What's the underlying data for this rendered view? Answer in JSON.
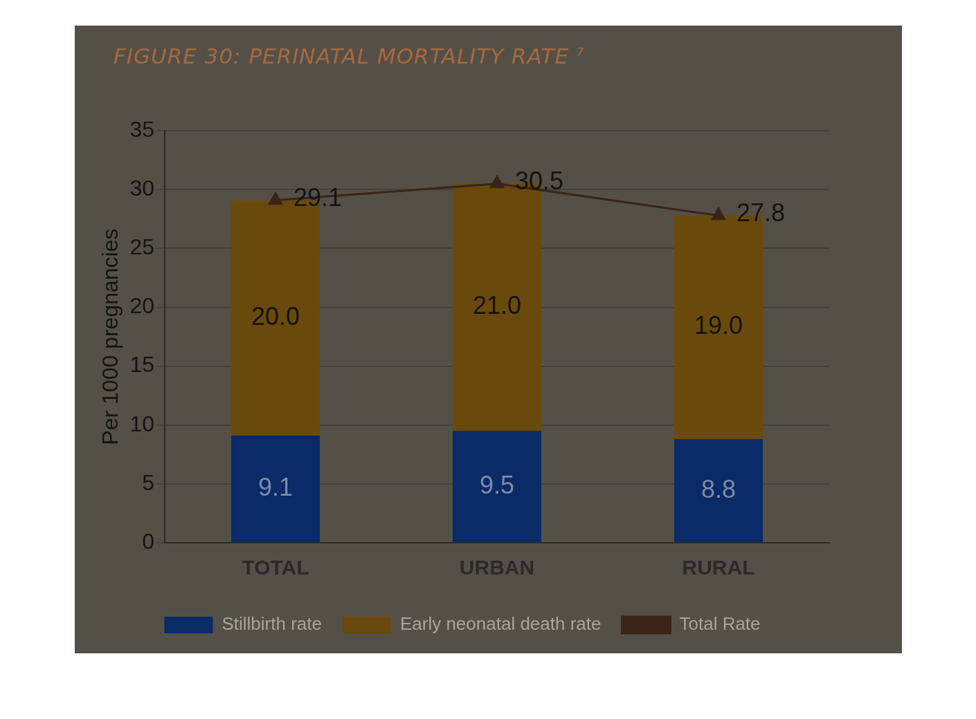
{
  "chart_data": {
    "type": "bar",
    "title": "FIGURE 30: PERINATAL MORTALITY RATE $^{7}$",
    "ylabel": "Per 1000 pregnancies",
    "categories": [
      "TOTAL",
      "URBAN",
      "RURAL"
    ],
    "stacked": true,
    "series": [
      {
        "name": "Stillbirth rate",
        "color": "#0a2a68",
        "values": [
          9.1,
          9.5,
          8.8
        ],
        "value_labels": [
          "9.1",
          "9.5",
          "8.8"
        ]
      },
      {
        "name": "Early neonatal death rate",
        "color": "#6a4a0c",
        "values": [
          20.0,
          21.0,
          19.0
        ],
        "value_labels": [
          "20.0",
          "21.0",
          "19.0"
        ]
      },
      {
        "name": "Total Rate",
        "type": "line",
        "color": "#3a2418",
        "values": [
          29.1,
          30.5,
          27.8
        ],
        "value_labels": [
          "29.1",
          "30.5",
          "27.8"
        ]
      }
    ],
    "ylim": [
      0,
      35
    ],
    "yticks": [
      0,
      5,
      10,
      15,
      20,
      25,
      30,
      35
    ],
    "grid": "y",
    "legend": "bottom",
    "marker": "triangle"
  }
}
